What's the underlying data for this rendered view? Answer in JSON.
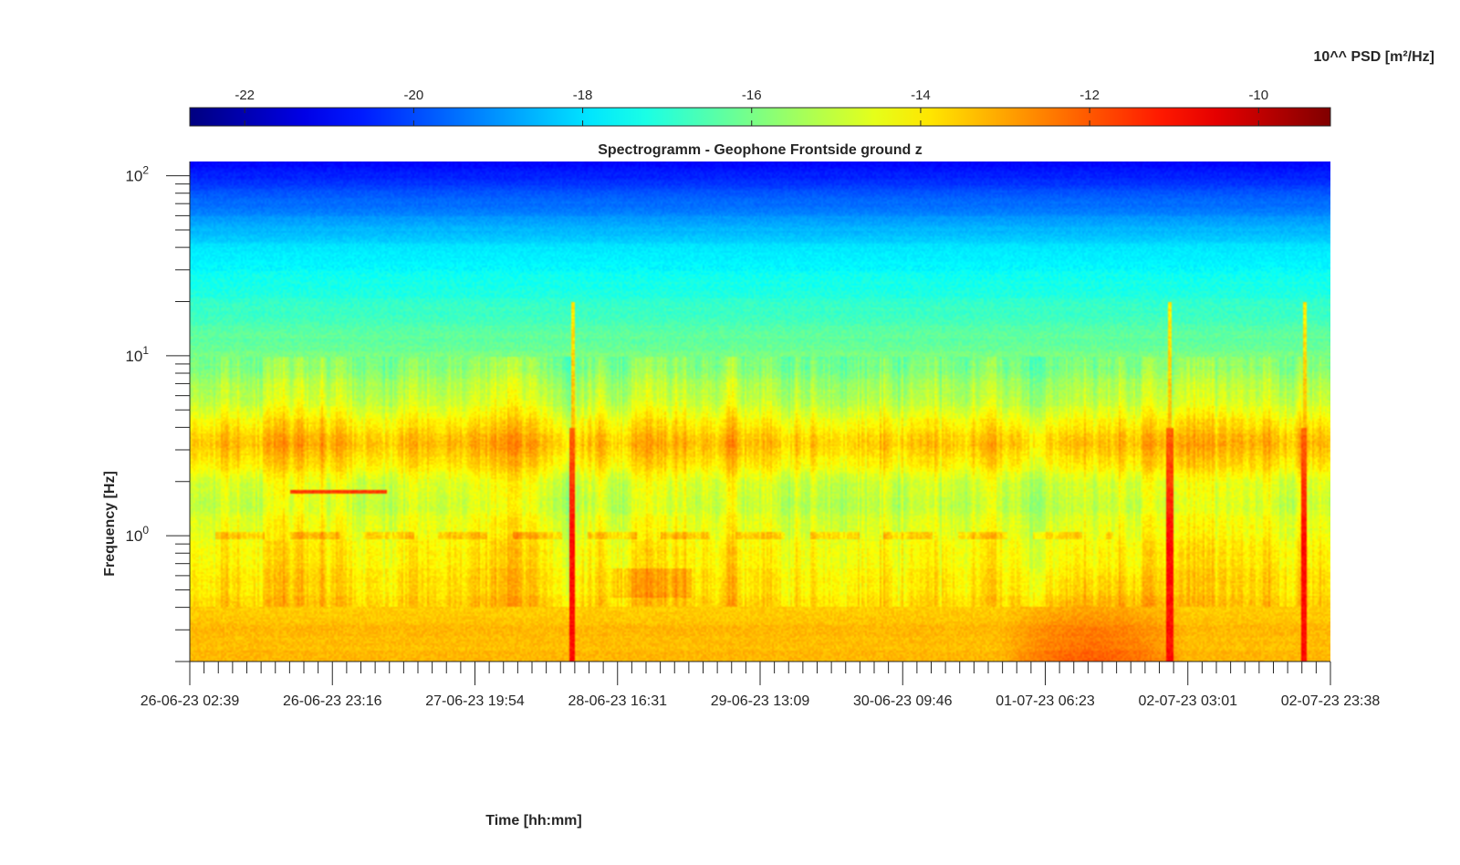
{
  "chart_data": {
    "type": "heatmap",
    "title": "Spectrogramm - Geophone Frontside ground z",
    "xlabel": "Time [hh:mm]",
    "ylabel": "Frequency [Hz]",
    "y_scale": "log",
    "ylim": [
      0.2,
      120
    ],
    "x_ticks": [
      "26-06-23 02:39",
      "26-06-23 23:16",
      "27-06-23 19:54",
      "28-06-23 16:31",
      "29-06-23 13:09",
      "30-06-23 09:46",
      "01-07-23 06:23",
      "02-07-23 03:01",
      "02-07-23 23:38"
    ],
    "y_ticks": [
      {
        "base": "10",
        "exp": "0",
        "value": 1
      },
      {
        "base": "10",
        "exp": "1",
        "value": 10
      },
      {
        "base": "10",
        "exp": "2",
        "value": 100
      }
    ],
    "colorbar": {
      "label": "10^^ PSD [m²/Hz]",
      "ticks": [
        "-22",
        "-20",
        "-18",
        "-16",
        "-14",
        "-12",
        "-10"
      ],
      "range": [
        -22.65,
        -9.15
      ],
      "colormap": "jet",
      "position": "top"
    },
    "features": [
      {
        "name": "broadband microseism floor",
        "freq_range_hz": [
          0.2,
          0.35
        ],
        "log10_psd": -13.2
      },
      {
        "name": "main energy band",
        "freq_range_hz": [
          1,
          5
        ],
        "log10_psd": -14.2
      },
      {
        "name": "1 Hz line",
        "freq_hz": 1.0,
        "log10_psd": -13.6
      },
      {
        "name": "narrowband tone",
        "freq_hz": 1.75,
        "time_range": [
          "26-06-23 17:00",
          "27-06-23 07:00"
        ],
        "log10_psd": -11.7
      },
      {
        "name": "strong low-frequency event",
        "freq_range_hz": [
          0.2,
          0.6
        ],
        "time_range": [
          "01-07-23 00:00",
          "02-07-23 03:00"
        ],
        "log10_psd": -12.3
      },
      {
        "name": "transient spikes",
        "times": [
          "28-06-23 10:00",
          "02-07-23 00:30",
          "02-07-23 20:00"
        ],
        "log10_psd": -11
      }
    ]
  }
}
